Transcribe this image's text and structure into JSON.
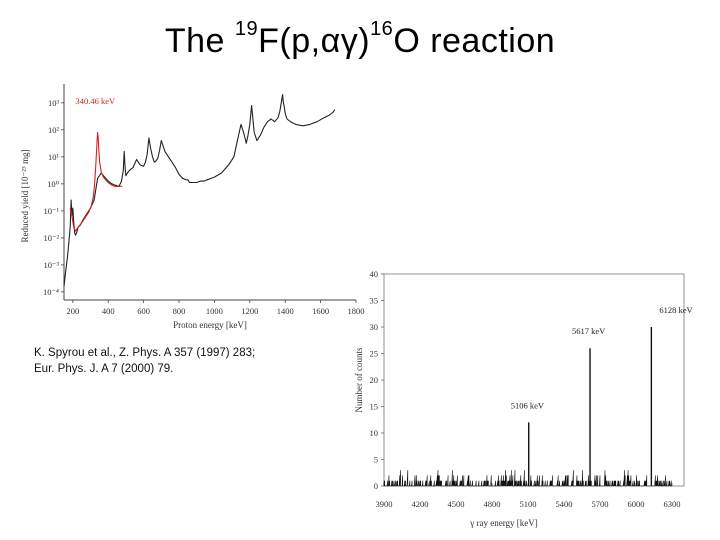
{
  "title": {
    "prefix": "The ",
    "sup1": "19",
    "mid": "F(p,αγ)",
    "sup2": "16",
    "suffix": "O reaction"
  },
  "citation": {
    "line1": "K. Spyrou et al., Z. Phys. A 357 (1997) 283;",
    "line2": "Eur. Phys. J. A 7 (2000) 79."
  },
  "chart_data": [
    {
      "type": "line",
      "xlabel": "Proton energy [keV]",
      "ylabel": "Reduced yield [10⁻²³ mg]",
      "x_ticks": [
        "200",
        "400",
        "600",
        "800",
        "1000",
        "1200",
        "1400",
        "1600",
        "1800"
      ],
      "y_ticks": [
        "10⁻⁴",
        "10⁻³",
        "10⁻²",
        "10⁻¹",
        "10⁰",
        "10¹",
        "10²",
        "10³"
      ],
      "xlim": [
        150,
        1800
      ],
      "ylim_log10": [
        -4.3,
        3.4
      ],
      "log_y": true,
      "annotation": {
        "text": "340.46 keV",
        "color": "#d62020"
      },
      "series": [
        {
          "color": "#d62020",
          "x": [
            185,
            195,
            200,
            205,
            215,
            230,
            250,
            270,
            290,
            305,
            315,
            322,
            328,
            333,
            337,
            340,
            343,
            347,
            352,
            360,
            372,
            385,
            400,
            420,
            440,
            460,
            480
          ],
          "y_log10": [
            -0.9,
            -1.2,
            -1.4,
            -1.6,
            -1.75,
            -1.6,
            -1.45,
            -1.25,
            -1.05,
            -0.8,
            -0.5,
            -0.1,
            0.5,
            1.1,
            1.6,
            1.9,
            1.7,
            1.2,
            0.8,
            0.45,
            0.25,
            0.15,
            0.05,
            -0.05,
            -0.1,
            -0.1,
            -0.08
          ]
        },
        {
          "color": "#222222",
          "x": [
            150,
            160,
            170,
            178,
            185,
            190,
            195,
            200,
            205,
            210,
            215,
            222,
            230,
            240,
            260,
            280,
            300,
            320,
            340,
            360,
            380,
            400,
            420,
            440,
            460,
            475,
            485,
            490,
            495,
            500,
            508,
            520,
            540,
            560,
            580,
            600,
            610,
            620,
            630,
            640,
            650,
            660,
            670,
            680,
            690,
            700,
            720,
            740,
            760,
            780,
            800,
            820,
            840,
            850,
            860,
            880,
            900,
            920,
            940,
            960,
            980,
            1000,
            1040,
            1080,
            1110,
            1130,
            1150,
            1165,
            1180,
            1190,
            1200,
            1210,
            1225,
            1240,
            1260,
            1280,
            1300,
            1320,
            1340,
            1360,
            1370,
            1380,
            1385,
            1390,
            1395,
            1400,
            1410,
            1430,
            1460,
            1500,
            1540,
            1580,
            1620,
            1650,
            1670,
            1680
          ],
          "y_log10": [
            -3.8,
            -3.2,
            -2.7,
            -2.1,
            -1.6,
            -0.6,
            -1.2,
            -0.9,
            -1.4,
            -1.8,
            -1.9,
            -1.8,
            -1.6,
            -1.55,
            -1.3,
            -1.1,
            -0.9,
            -0.6,
            0.2,
            0.4,
            0.25,
            0.1,
            0.0,
            -0.05,
            -0.1,
            0.1,
            0.5,
            1.2,
            0.6,
            0.3,
            0.4,
            0.5,
            0.6,
            0.9,
            0.7,
            0.65,
            0.8,
            1.1,
            1.7,
            1.3,
            1.0,
            0.8,
            0.85,
            0.95,
            1.25,
            1.6,
            1.2,
            1.0,
            0.8,
            0.6,
            0.35,
            0.2,
            0.15,
            0.15,
            0.05,
            0.05,
            0.05,
            0.1,
            0.1,
            0.15,
            0.2,
            0.25,
            0.4,
            0.7,
            1.0,
            1.6,
            2.2,
            1.9,
            1.5,
            1.8,
            2.2,
            2.9,
            1.9,
            1.6,
            1.8,
            2.1,
            2.3,
            2.4,
            2.3,
            2.45,
            2.7,
            3.1,
            3.3,
            3.0,
            2.85,
            2.6,
            2.4,
            2.3,
            2.2,
            2.15,
            2.2,
            2.3,
            2.45,
            2.55,
            2.65,
            2.75
          ]
        }
      ]
    },
    {
      "type": "line",
      "xlabel": "γ ray energy [keV]",
      "ylabel": "Number of counts",
      "x_ticks": [
        "3900",
        "4200",
        "4500",
        "4800",
        "5100",
        "5400",
        "5700",
        "6000",
        "6300"
      ],
      "y_ticks": [
        "0",
        "5",
        "10",
        "15",
        "20",
        "25",
        "30",
        "35",
        "40"
      ],
      "xlim": [
        3900,
        6400
      ],
      "ylim": [
        0,
        40
      ],
      "peaks": [
        {
          "label": "5106 keV",
          "x": 5106,
          "counts": 12
        },
        {
          "label": "5617 keV",
          "x": 5617,
          "counts": 26
        },
        {
          "label": "6128 keV",
          "x": 6128,
          "counts": 30
        }
      ],
      "background_counts_range": [
        0,
        2
      ]
    }
  ]
}
